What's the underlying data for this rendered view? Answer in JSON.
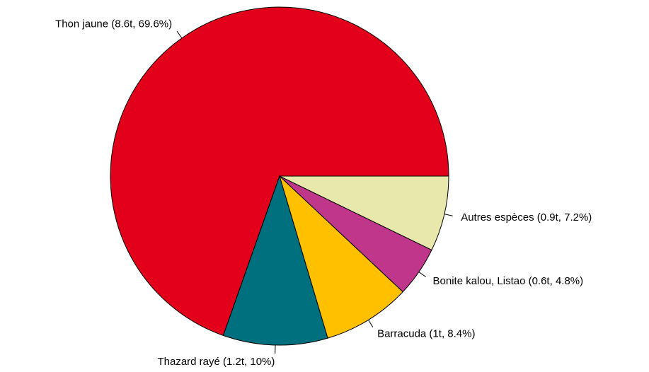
{
  "chart_data": {
    "type": "pie",
    "values": [
      69.6,
      10,
      8.4,
      4.8,
      7.2
    ],
    "value_labels": [
      "Thon jaune (8.6t, 69.6%)",
      "Thazard rayé (1.2t, 10%)",
      "Barracuda (1t, 8.4%)",
      "Bonite kalou, Listao (0.6t, 4.8%)",
      "Autres espèces (0.9t, 7.2%)"
    ],
    "colors": [
      "#e2001a",
      "#00707e",
      "#ffc000",
      "#c0368a",
      "#e8e8ac"
    ]
  }
}
